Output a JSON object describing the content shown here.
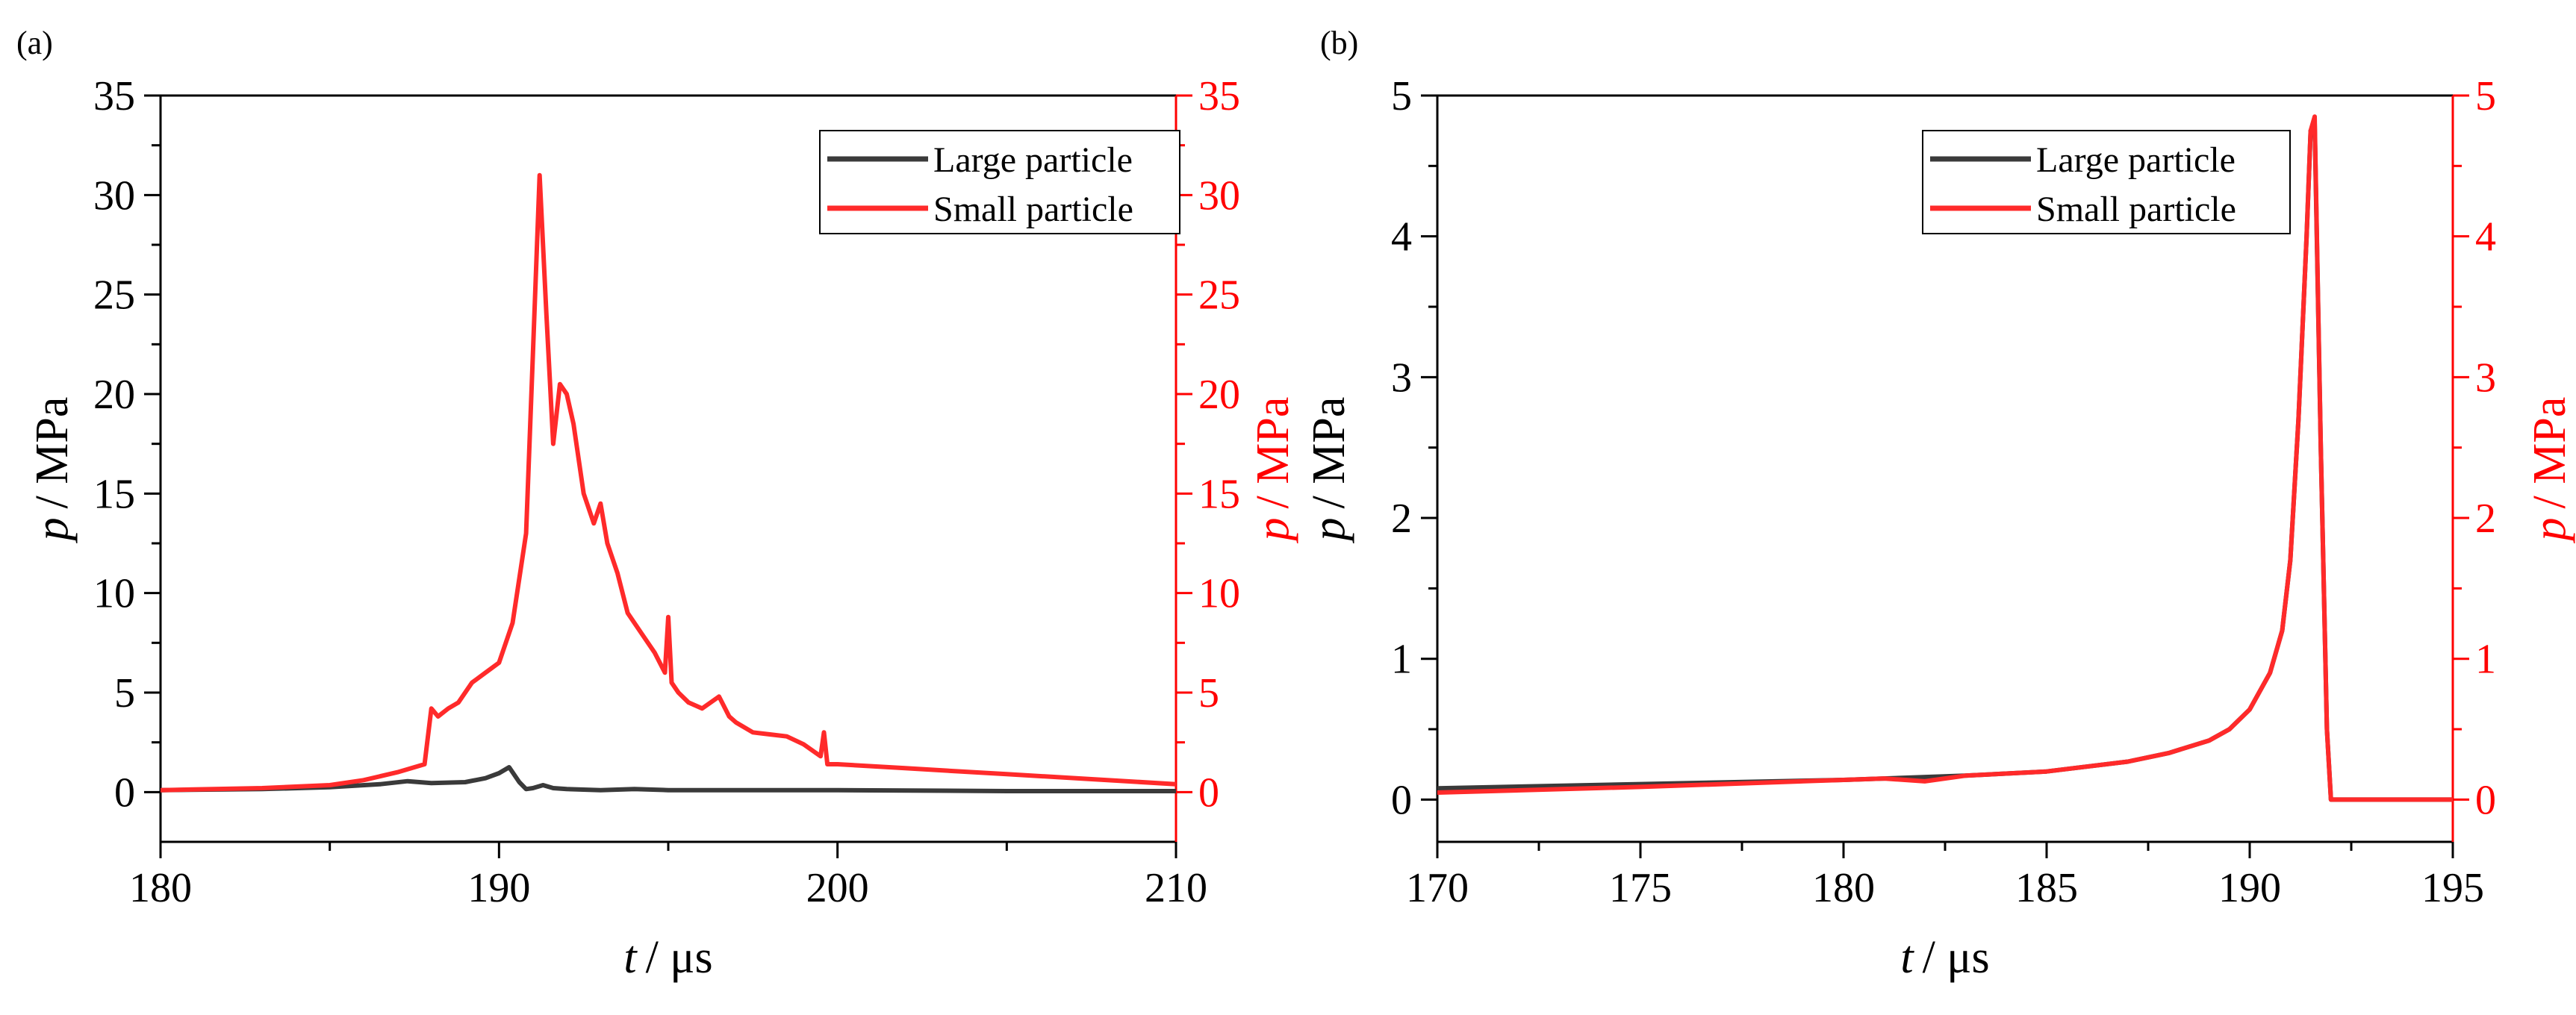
{
  "colors": {
    "black_series": "#3a3a3a",
    "red_series": "#ff2a2a",
    "axis": "#000000",
    "red_axis": "#ff0000"
  },
  "chart_data": [
    {
      "type": "line",
      "panel_label": "(a)",
      "xlabel": {
        "symbol": "t",
        "unit": "/ μs"
      },
      "ylabel_left": {
        "symbol": "p",
        "unit": "/ MPa"
      },
      "ylabel_right": {
        "symbol": "p",
        "unit": "/ MPa"
      },
      "xlim": [
        180,
        210
      ],
      "ylim": [
        -2.5,
        35
      ],
      "xticks": [
        180,
        190,
        200,
        210
      ],
      "yticks": [
        0,
        5,
        10,
        15,
        20,
        25,
        30,
        35
      ],
      "legend_position": "top-right",
      "series": [
        {
          "name": "Large particle",
          "color_key": "black_series",
          "x": [
            180,
            183,
            185,
            186.5,
            187.3,
            188,
            189,
            189.6,
            190.0,
            190.3,
            190.6,
            190.8,
            191.0,
            191.3,
            191.6,
            192,
            193,
            194,
            195,
            200,
            205,
            210
          ],
          "y": [
            0.1,
            0.15,
            0.25,
            0.4,
            0.55,
            0.45,
            0.5,
            0.7,
            0.95,
            1.25,
            0.5,
            0.15,
            0.2,
            0.35,
            0.2,
            0.15,
            0.1,
            0.15,
            0.1,
            0.1,
            0.05,
            0.05
          ]
        },
        {
          "name": "Small particle",
          "color_key": "red_series",
          "x": [
            180,
            183,
            185,
            186,
            187,
            187.8,
            188.0,
            188.2,
            188.5,
            188.8,
            189.2,
            189.6,
            190.0,
            190.4,
            190.8,
            191.0,
            191.2,
            191.4,
            191.6,
            191.8,
            192.0,
            192.2,
            192.5,
            192.8,
            193.0,
            193.2,
            193.5,
            193.8,
            194.2,
            194.6,
            194.9,
            195.0,
            195.1,
            195.3,
            195.6,
            196.0,
            196.5,
            196.8,
            197.0,
            197.5,
            198.0,
            198.5,
            199.0,
            199.5,
            199.6,
            199.7,
            200,
            202,
            205,
            210
          ],
          "y": [
            0.1,
            0.2,
            0.35,
            0.6,
            1.0,
            1.4,
            4.2,
            3.8,
            4.2,
            4.5,
            5.5,
            6.0,
            6.5,
            8.5,
            13.0,
            22.0,
            31.0,
            24.0,
            17.5,
            20.5,
            20.0,
            18.5,
            15.0,
            13.5,
            14.5,
            12.5,
            11.0,
            9.0,
            8.0,
            7.0,
            6.0,
            8.8,
            5.5,
            5.0,
            4.5,
            4.2,
            4.8,
            3.8,
            3.5,
            3.0,
            2.9,
            2.8,
            2.4,
            1.8,
            3.0,
            1.4,
            1.4,
            1.2,
            0.9,
            0.4
          ]
        }
      ]
    },
    {
      "type": "line",
      "panel_label": "(b)",
      "xlabel": {
        "symbol": "t",
        "unit": "/ μs"
      },
      "ylabel_left": {
        "symbol": "p",
        "unit": "/ MPa"
      },
      "ylabel_right": {
        "symbol": "p",
        "unit": "/ MPa"
      },
      "xlim": [
        170,
        195
      ],
      "ylim": [
        -0.3,
        5
      ],
      "xticks": [
        170,
        175,
        180,
        185,
        190,
        195
      ],
      "yticks": [
        0,
        1,
        2,
        3,
        4,
        5
      ],
      "legend_position": "top-right",
      "series": [
        {
          "name": "Large particle",
          "color_key": "black_series",
          "x": [
            170,
            175,
            180,
            183,
            185,
            187,
            188,
            189,
            189.5,
            190,
            190.5,
            190.8,
            191.0,
            191.2,
            191.4,
            191.5,
            191.6,
            191.75,
            191.9,
            192.0,
            195
          ],
          "y": [
            0.08,
            0.11,
            0.14,
            0.17,
            0.2,
            0.27,
            0.33,
            0.42,
            0.5,
            0.64,
            0.9,
            1.2,
            1.7,
            2.7,
            4.0,
            4.75,
            4.8,
            2.5,
            0.5,
            0.0,
            0.0
          ]
        },
        {
          "name": "Small particle",
          "color_key": "red_series",
          "x": [
            170,
            175,
            180,
            181,
            182,
            183,
            185,
            187,
            188,
            189,
            189.5,
            190,
            190.5,
            190.8,
            191.0,
            191.2,
            191.4,
            191.5,
            191.6,
            191.75,
            191.9,
            192.0,
            195
          ],
          "y": [
            0.05,
            0.09,
            0.14,
            0.15,
            0.13,
            0.17,
            0.2,
            0.27,
            0.33,
            0.42,
            0.5,
            0.64,
            0.9,
            1.2,
            1.7,
            2.7,
            4.0,
            4.75,
            4.85,
            2.5,
            0.5,
            0.0,
            0.0
          ]
        }
      ]
    }
  ]
}
